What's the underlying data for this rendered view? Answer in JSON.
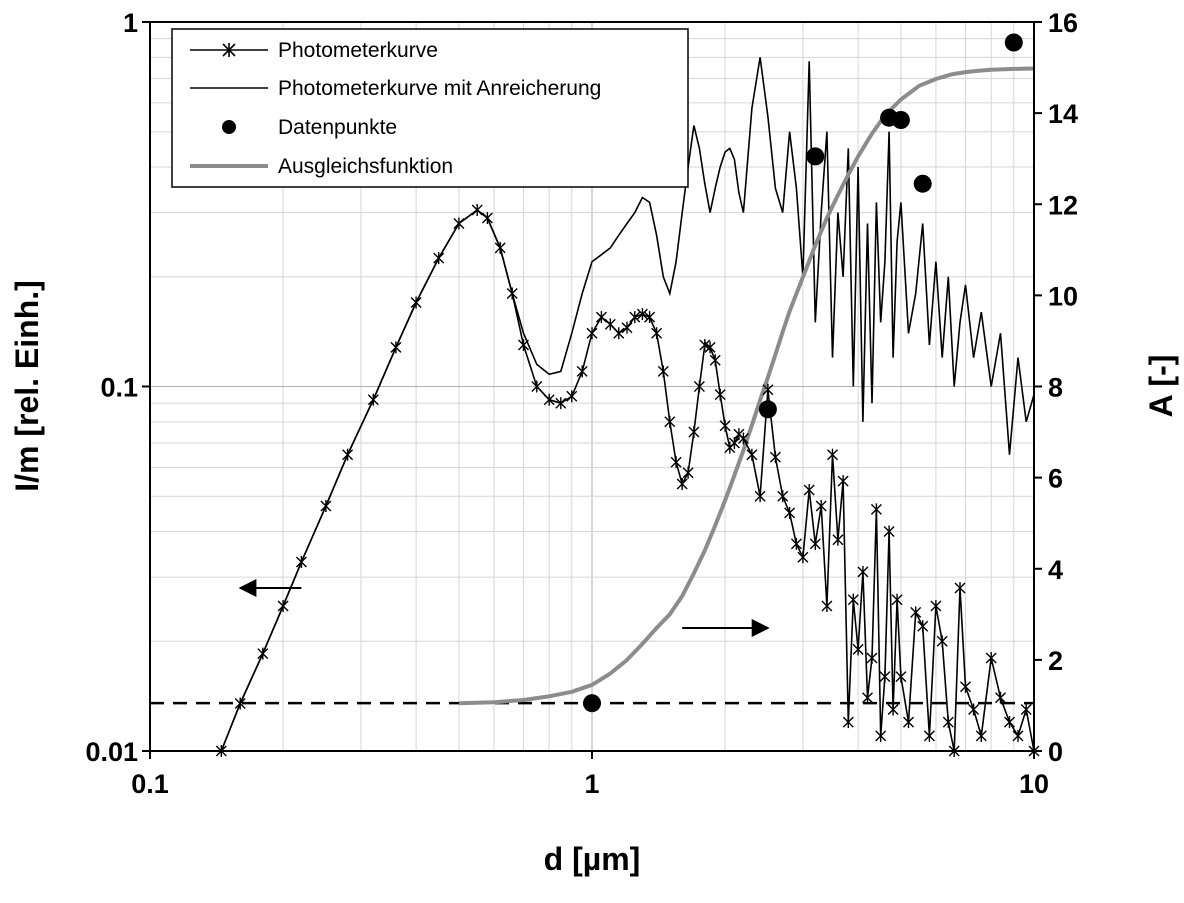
{
  "chart_data": {
    "type": "line",
    "xlabel": "d [µm]",
    "ylabel": "I/m [rel. Einh.]",
    "y2label": "A [-]",
    "xscale": "log",
    "yscale": "log",
    "xlim": [
      0.1,
      10
    ],
    "ylim": [
      0.01,
      1
    ],
    "y2lim": [
      0,
      16
    ],
    "grid": true,
    "legend_position": "top-left",
    "x_ticks": [
      "0.1",
      "1",
      "10"
    ],
    "y_ticks": [
      "0.01",
      "0.1",
      "1"
    ],
    "y2_ticks": [
      "0",
      "2",
      "4",
      "6",
      "8",
      "10",
      "12",
      "14",
      "16"
    ],
    "colors": {
      "photometer": "#000000",
      "enriched": "#000000",
      "points": "#000000",
      "fit": "#8c8c8c",
      "threshold": "#000000"
    },
    "series": [
      {
        "name": "Photometerkurve",
        "axis": "left",
        "marker": "asterisk",
        "x": [
          0.145,
          0.16,
          0.18,
          0.2,
          0.22,
          0.25,
          0.28,
          0.32,
          0.36,
          0.4,
          0.45,
          0.5,
          0.55,
          0.58,
          0.62,
          0.66,
          0.7,
          0.75,
          0.8,
          0.85,
          0.9,
          0.95,
          1.0,
          1.05,
          1.1,
          1.15,
          1.2,
          1.25,
          1.3,
          1.35,
          1.4,
          1.45,
          1.5,
          1.55,
          1.6,
          1.65,
          1.7,
          1.75,
          1.8,
          1.85,
          1.9,
          1.95,
          2.0,
          2.05,
          2.1,
          2.15,
          2.2,
          2.3,
          2.4,
          2.5,
          2.6,
          2.7,
          2.8,
          2.9,
          3.0,
          3.1,
          3.2,
          3.3,
          3.4,
          3.5,
          3.6,
          3.7,
          3.8,
          3.9,
          4.0,
          4.1,
          4.2,
          4.3,
          4.4,
          4.5,
          4.6,
          4.7,
          4.8,
          4.9,
          5.0,
          5.2,
          5.4,
          5.6,
          5.8,
          6.0,
          6.2,
          6.4,
          6.6,
          6.8,
          7.0,
          7.3,
          7.6,
          8.0,
          8.4,
          8.8,
          9.2,
          9.6,
          10.0
        ],
        "y": [
          0.01,
          0.0135,
          0.0185,
          0.025,
          0.033,
          0.047,
          0.065,
          0.092,
          0.128,
          0.17,
          0.225,
          0.28,
          0.305,
          0.29,
          0.24,
          0.18,
          0.13,
          0.1,
          0.092,
          0.09,
          0.094,
          0.11,
          0.14,
          0.155,
          0.148,
          0.14,
          0.145,
          0.155,
          0.158,
          0.155,
          0.14,
          0.11,
          0.08,
          0.062,
          0.054,
          0.058,
          0.075,
          0.1,
          0.13,
          0.128,
          0.118,
          0.095,
          0.078,
          0.068,
          0.07,
          0.074,
          0.072,
          0.065,
          0.05,
          0.098,
          0.064,
          0.05,
          0.045,
          0.037,
          0.034,
          0.052,
          0.037,
          0.047,
          0.025,
          0.065,
          0.038,
          0.055,
          0.012,
          0.026,
          0.019,
          0.031,
          0.014,
          0.018,
          0.046,
          0.011,
          0.016,
          0.04,
          0.013,
          0.026,
          0.016,
          0.012,
          0.024,
          0.022,
          0.011,
          0.025,
          0.02,
          0.012,
          0.01,
          0.028,
          0.015,
          0.013,
          0.011,
          0.018,
          0.014,
          0.012,
          0.011,
          0.013,
          0.01
        ]
      },
      {
        "name": "Photometerkurve mit Anreicherung",
        "axis": "left",
        "marker": "none",
        "x": [
          0.145,
          0.16,
          0.18,
          0.2,
          0.22,
          0.25,
          0.28,
          0.32,
          0.36,
          0.4,
          0.45,
          0.5,
          0.55,
          0.58,
          0.62,
          0.66,
          0.7,
          0.75,
          0.8,
          0.85,
          0.9,
          0.95,
          1.0,
          1.05,
          1.1,
          1.15,
          1.2,
          1.25,
          1.3,
          1.35,
          1.4,
          1.45,
          1.5,
          1.55,
          1.6,
          1.65,
          1.7,
          1.75,
          1.8,
          1.85,
          1.9,
          1.95,
          2.0,
          2.05,
          2.1,
          2.15,
          2.2,
          2.3,
          2.4,
          2.5,
          2.6,
          2.7,
          2.8,
          2.9,
          3.0,
          3.1,
          3.2,
          3.3,
          3.4,
          3.5,
          3.6,
          3.7,
          3.8,
          3.9,
          4.0,
          4.1,
          4.2,
          4.3,
          4.4,
          4.5,
          4.6,
          4.7,
          4.8,
          4.9,
          5.0,
          5.2,
          5.4,
          5.6,
          5.8,
          6.0,
          6.2,
          6.4,
          6.6,
          6.8,
          7.0,
          7.3,
          7.6,
          8.0,
          8.4,
          8.8,
          9.2,
          9.6,
          10.0
        ],
        "y": [
          0.01,
          0.0135,
          0.0185,
          0.025,
          0.033,
          0.047,
          0.065,
          0.092,
          0.128,
          0.17,
          0.225,
          0.28,
          0.305,
          0.29,
          0.24,
          0.18,
          0.14,
          0.115,
          0.108,
          0.11,
          0.14,
          0.18,
          0.22,
          0.23,
          0.24,
          0.26,
          0.28,
          0.3,
          0.33,
          0.32,
          0.26,
          0.2,
          0.18,
          0.22,
          0.3,
          0.4,
          0.52,
          0.45,
          0.36,
          0.3,
          0.35,
          0.4,
          0.44,
          0.45,
          0.42,
          0.34,
          0.3,
          0.58,
          0.8,
          0.55,
          0.35,
          0.3,
          0.5,
          0.35,
          0.2,
          0.78,
          0.15,
          0.3,
          0.5,
          0.12,
          0.3,
          0.2,
          0.45,
          0.1,
          0.4,
          0.08,
          0.28,
          0.09,
          0.32,
          0.15,
          0.22,
          0.5,
          0.12,
          0.25,
          0.32,
          0.14,
          0.18,
          0.28,
          0.13,
          0.22,
          0.12,
          0.2,
          0.1,
          0.15,
          0.19,
          0.12,
          0.16,
          0.1,
          0.14,
          0.065,
          0.12,
          0.08,
          0.095
        ]
      },
      {
        "name": "Datenpunkte",
        "axis": "right",
        "marker": "filled-circle",
        "x": [
          1.0,
          2.5,
          3.2,
          4.7,
          5.0,
          5.6,
          9.0
        ],
        "y": [
          1.05,
          7.5,
          13.05,
          13.9,
          13.85,
          12.45,
          15.55
        ]
      },
      {
        "name": "Ausgleichsfunktion",
        "axis": "right",
        "marker": "none",
        "x": [
          0.5,
          0.6,
          0.7,
          0.8,
          0.9,
          1.0,
          1.1,
          1.2,
          1.3,
          1.4,
          1.5,
          1.6,
          1.7,
          1.8,
          1.9,
          2.0,
          2.1,
          2.2,
          2.3,
          2.4,
          2.5,
          2.6,
          2.7,
          2.8,
          3.0,
          3.2,
          3.4,
          3.6,
          3.8,
          4.0,
          4.3,
          4.6,
          5.0,
          5.5,
          6.0,
          6.5,
          7.0,
          7.5,
          8.0,
          9.0,
          10.0
        ],
        "y": [
          1.05,
          1.07,
          1.12,
          1.2,
          1.3,
          1.45,
          1.7,
          2.0,
          2.35,
          2.7,
          3.0,
          3.4,
          3.9,
          4.4,
          4.95,
          5.5,
          6.05,
          6.6,
          7.15,
          7.7,
          8.2,
          8.7,
          9.2,
          9.65,
          10.4,
          11.1,
          11.7,
          12.2,
          12.65,
          13.05,
          13.55,
          13.95,
          14.3,
          14.6,
          14.75,
          14.85,
          14.9,
          14.93,
          14.95,
          14.97,
          14.98
        ]
      }
    ],
    "reference_line": {
      "axis": "right",
      "y": 1.05,
      "style": "dashed"
    },
    "annotations": [
      {
        "type": "arrow",
        "points_to": "left axis",
        "x_from": 0.22,
        "x_to": 0.16,
        "y": 0.028
      },
      {
        "type": "arrow",
        "points_to": "right axis",
        "x_from": 1.6,
        "x_to": 2.5,
        "y2": 2.7
      }
    ]
  }
}
